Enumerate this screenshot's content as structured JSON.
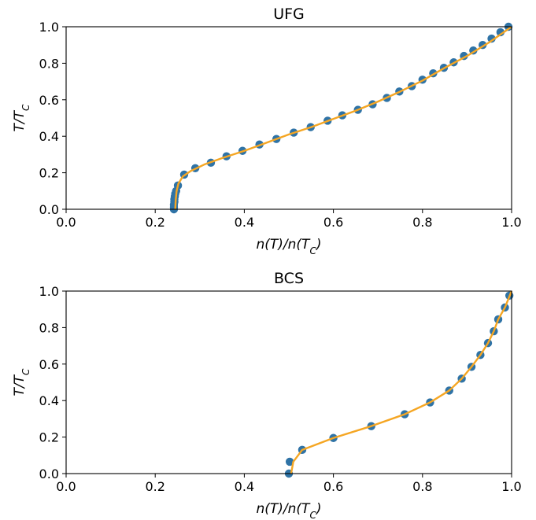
{
  "chart_data": [
    {
      "type": "scatter",
      "title": "UFG",
      "xlabel": "n(T)/n(T_C)",
      "ylabel": "T/T_C",
      "xlim": [
        0.0,
        1.0
      ],
      "ylim": [
        0.0,
        1.0
      ],
      "xticks": [
        "0.0",
        "0.2",
        "0.4",
        "0.6",
        "0.8",
        "1.0"
      ],
      "yticks": [
        "0.0",
        "0.2",
        "0.4",
        "0.6",
        "0.8",
        "1.0"
      ],
      "grid": false,
      "colors": {
        "points": "#2f73a6",
        "fit": "#f5a623"
      },
      "series": [
        {
          "kind": "points",
          "x": [
            0.242,
            0.242,
            0.242,
            0.243,
            0.243,
            0.244,
            0.245,
            0.247,
            0.251,
            0.265,
            0.29,
            0.325,
            0.36,
            0.396,
            0.434,
            0.472,
            0.511,
            0.549,
            0.587,
            0.62,
            0.655,
            0.688,
            0.72,
            0.748,
            0.776,
            0.8,
            0.824,
            0.848,
            0.87,
            0.893,
            0.914,
            0.935,
            0.955,
            0.975,
            0.993
          ],
          "y": [
            0.0,
            0.012,
            0.025,
            0.04,
            0.055,
            0.07,
            0.085,
            0.1,
            0.13,
            0.19,
            0.225,
            0.255,
            0.29,
            0.32,
            0.355,
            0.385,
            0.42,
            0.45,
            0.485,
            0.515,
            0.545,
            0.575,
            0.61,
            0.645,
            0.675,
            0.71,
            0.745,
            0.775,
            0.805,
            0.84,
            0.87,
            0.9,
            0.935,
            0.97,
            1.0
          ]
        },
        {
          "kind": "line",
          "x": [
            0.245,
            0.246,
            0.248,
            0.252,
            0.262,
            0.28,
            0.31,
            0.35,
            0.4,
            0.45,
            0.5,
            0.55,
            0.6,
            0.65,
            0.7,
            0.75,
            0.8,
            0.85,
            0.9,
            0.95,
            1.0
          ],
          "y": [
            0.0,
            0.05,
            0.1,
            0.14,
            0.18,
            0.21,
            0.245,
            0.28,
            0.32,
            0.365,
            0.41,
            0.45,
            0.495,
            0.54,
            0.59,
            0.645,
            0.705,
            0.775,
            0.84,
            0.915,
            1.0
          ]
        }
      ]
    },
    {
      "type": "scatter",
      "title": "BCS",
      "xlabel": "n(T)/n(T_C)",
      "ylabel": "T/T_C",
      "xlim": [
        0.0,
        1.0
      ],
      "ylim": [
        0.0,
        1.0
      ],
      "xticks": [
        "0.0",
        "0.2",
        "0.4",
        "0.6",
        "0.8",
        "1.0"
      ],
      "yticks": [
        "0.0",
        "0.2",
        "0.4",
        "0.6",
        "0.8",
        "1.0"
      ],
      "grid": false,
      "colors": {
        "points": "#2f73a6",
        "fit": "#f5a623"
      },
      "series": [
        {
          "kind": "points",
          "x": [
            0.5,
            0.502,
            0.53,
            0.6,
            0.685,
            0.76,
            0.817,
            0.86,
            0.888,
            0.91,
            0.93,
            0.947,
            0.96,
            0.97,
            0.985,
            0.995
          ],
          "y": [
            0.0,
            0.065,
            0.13,
            0.195,
            0.26,
            0.325,
            0.39,
            0.455,
            0.52,
            0.585,
            0.65,
            0.715,
            0.78,
            0.845,
            0.91,
            0.975
          ]
        },
        {
          "kind": "line",
          "x": [
            0.505,
            0.51,
            0.53,
            0.6,
            0.685,
            0.76,
            0.817,
            0.86,
            0.888,
            0.91,
            0.93,
            0.947,
            0.96,
            0.97,
            0.985,
            1.0
          ],
          "y": [
            0.0,
            0.065,
            0.13,
            0.195,
            0.26,
            0.325,
            0.39,
            0.455,
            0.52,
            0.585,
            0.65,
            0.715,
            0.78,
            0.845,
            0.91,
            1.0
          ]
        }
      ]
    }
  ]
}
